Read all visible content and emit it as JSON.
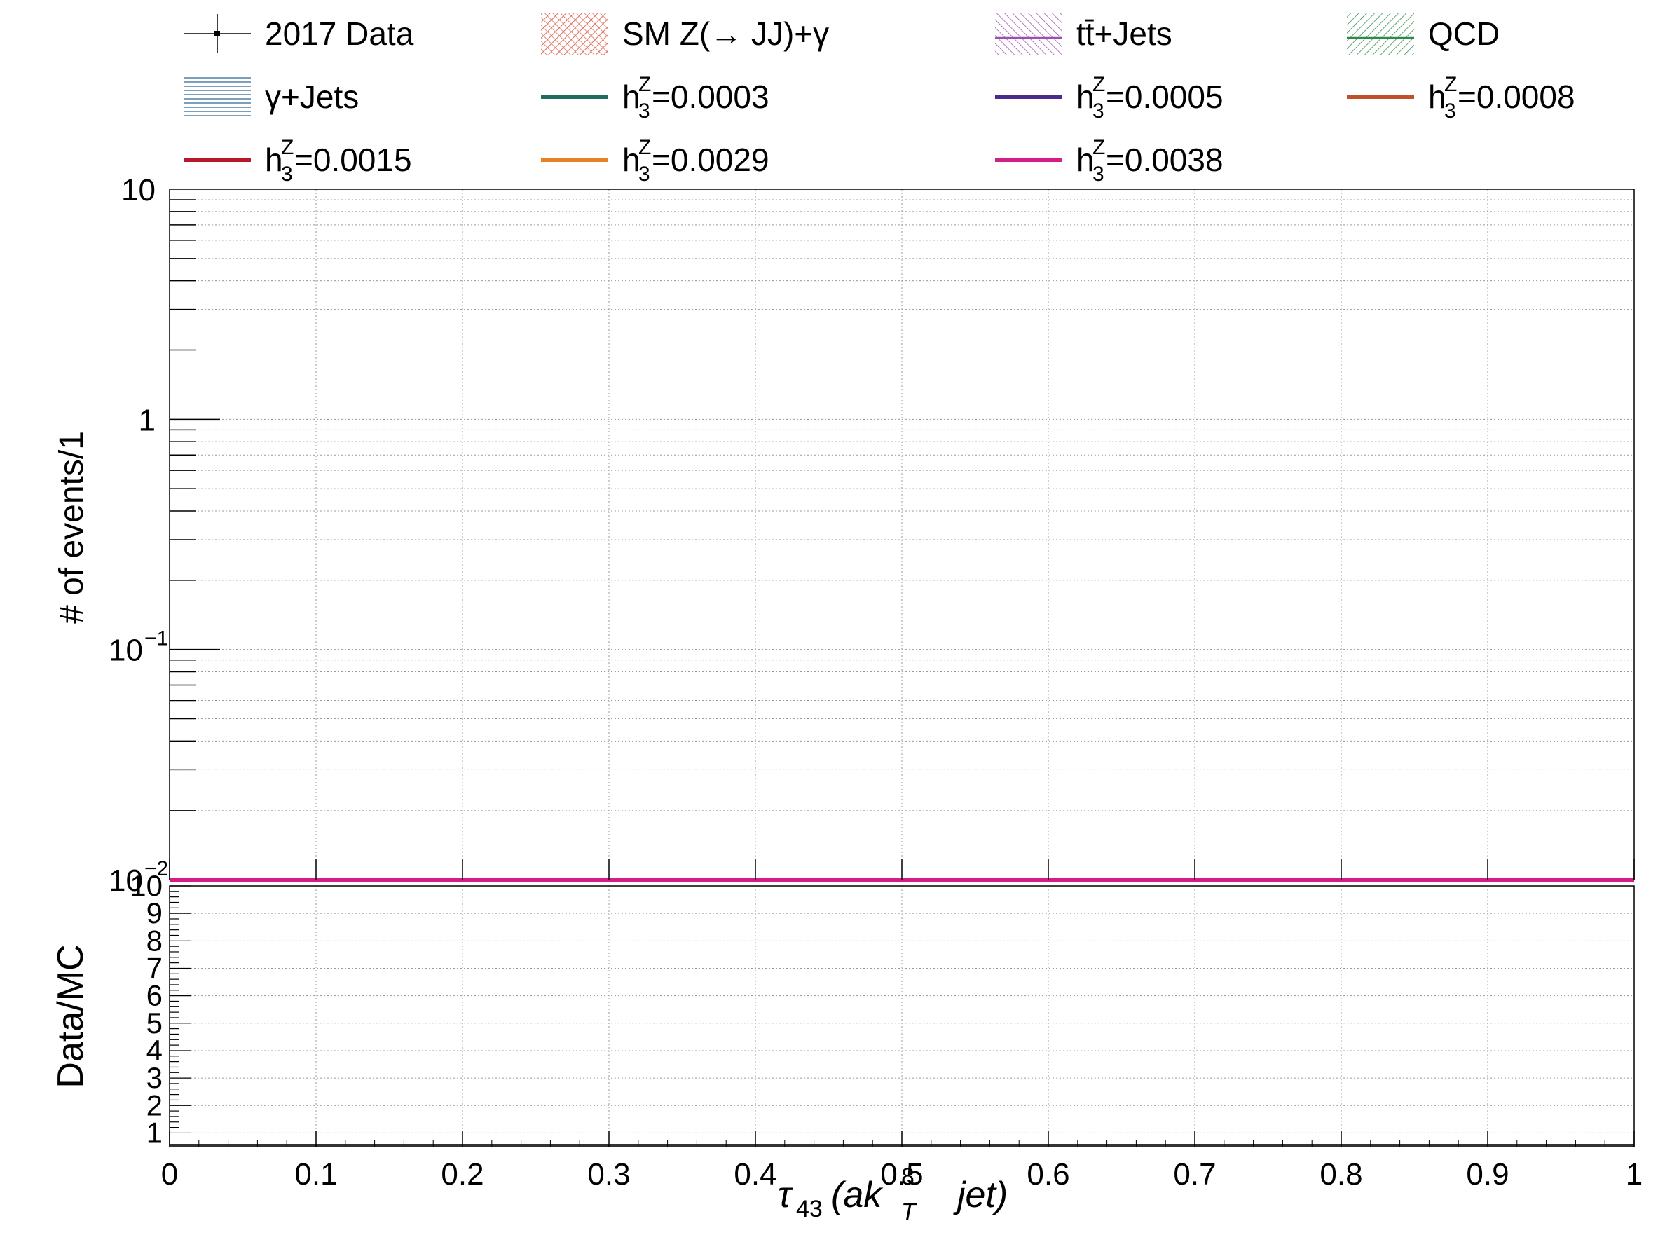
{
  "chart_data": [
    {
      "type": "line",
      "panel": "main",
      "xlim": [
        0,
        1
      ],
      "ylim": [
        0.01,
        10
      ],
      "y_scale": "log",
      "grid": true,
      "ylabel": "# of events/1",
      "yticks": [
        0.01,
        0.1,
        1,
        10
      ],
      "ytick_labels": [
        {
          "base": "10",
          "exp": "−2"
        },
        {
          "base": "10",
          "exp": "−1"
        },
        {
          "base": "1",
          "exp": ""
        },
        {
          "base": "10",
          "exp": ""
        }
      ],
      "legend": [
        {
          "label": "2017 Data",
          "style": "marker",
          "color": "#000000"
        },
        {
          "label": "SM Z(→ JJ)+γ",
          "style": "hatch",
          "color": "#e06a5a"
        },
        {
          "label": "tt̄+Jets",
          "style": "hatch-line",
          "color": "#9b4fae"
        },
        {
          "label": "QCD",
          "style": "hatch-line",
          "color": "#2f8a4a"
        },
        {
          "label": "γ+Jets",
          "style": "hlines",
          "color": "#4f7fa6"
        },
        {
          "label": "h",
          "sub": "3",
          "sup": "Z",
          "value": "=0.0003",
          "style": "line",
          "color": "#1f6b60"
        },
        {
          "label": "h",
          "sub": "3",
          "sup": "Z",
          "value": "=0.0005",
          "style": "line",
          "color": "#4a2a8c"
        },
        {
          "label": "h",
          "sub": "3",
          "sup": "Z",
          "value": "=0.0008",
          "style": "line",
          "color": "#c0502a"
        },
        {
          "label": "h",
          "sub": "3",
          "sup": "Z",
          "value": "=0.0015",
          "style": "line",
          "color": "#b81a2a"
        },
        {
          "label": "h",
          "sub": "3",
          "sup": "Z",
          "value": "=0.0029",
          "style": "line",
          "color": "#e8821e"
        },
        {
          "label": "h",
          "sub": "3",
          "sup": "Z",
          "value": "=0.0038",
          "style": "line",
          "color": "#d41c8a"
        }
      ],
      "series": [
        {
          "name": "h3Z=0.0038",
          "color": "#d41c8a",
          "x": [
            0,
            1
          ],
          "y": [
            0.01,
            0.01
          ]
        }
      ]
    },
    {
      "type": "line",
      "panel": "ratio",
      "xlim": [
        0,
        1
      ],
      "ylim": [
        0.5,
        10
      ],
      "grid": true,
      "ylabel": "Data/MC",
      "xlabel": {
        "tau": "τ",
        "tau_sub": "43",
        "paren_open": "(ak",
        "k_sup": "8",
        "k_sub": "T",
        "rest": "jet)"
      },
      "xticks": [
        0,
        0.1,
        0.2,
        0.3,
        0.4,
        0.5,
        0.6,
        0.7,
        0.8,
        0.9,
        1
      ],
      "xtick_labels": [
        "0",
        "0.1",
        "0.2",
        "0.3",
        "0.4",
        "0.5",
        "0.6",
        "0.7",
        "0.8",
        "0.9",
        "1"
      ],
      "yticks": [
        1,
        2,
        3,
        4,
        5,
        6,
        7,
        8,
        9,
        10
      ],
      "ytick_labels": [
        "1",
        "2",
        "3",
        "4",
        "5",
        "6",
        "7",
        "8",
        "9",
        "10"
      ],
      "series": [
        {
          "name": "ratio",
          "color": "#333333",
          "x": [
            0,
            1
          ],
          "y": [
            0.5,
            0.5
          ]
        }
      ]
    }
  ]
}
